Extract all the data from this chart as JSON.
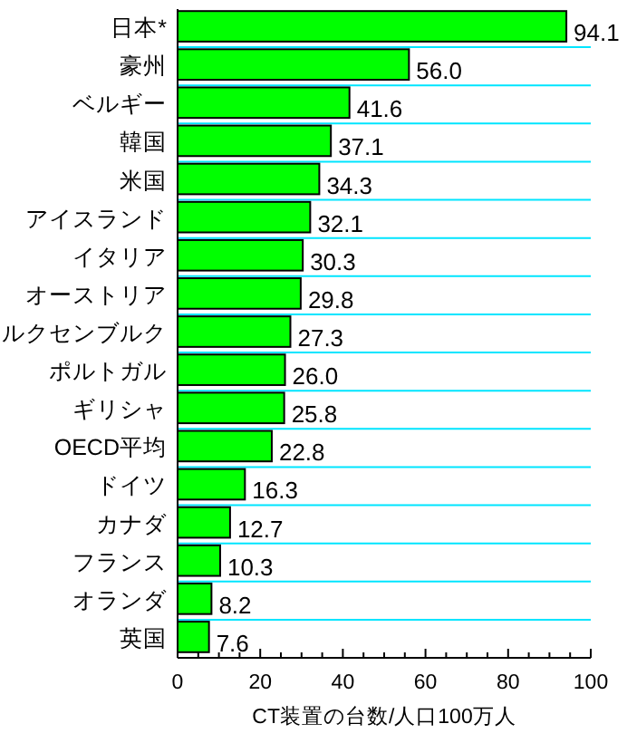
{
  "chart_data": {
    "type": "bar",
    "orientation": "horizontal",
    "xlabel": "CT装置の台数/人口100万人",
    "categories": [
      "日本*",
      "豪州",
      "ベルギー",
      "韓国",
      "米国",
      "アイスランド",
      "イタリア",
      "オーストリア",
      "ルクセンブルク",
      "ポルトガル",
      "ギリシャ",
      "OECD平均",
      "ドイツ",
      "カナダ",
      "フランス",
      "オランダ",
      "英国"
    ],
    "values": [
      94.1,
      56.0,
      41.6,
      37.1,
      34.3,
      32.1,
      30.3,
      29.8,
      27.3,
      26.0,
      25.8,
      22.8,
      16.3,
      12.7,
      10.3,
      8.2,
      7.6
    ],
    "value_labels": [
      "94.1",
      "56.0",
      "41.6",
      "37.1",
      "34.3",
      "32.1",
      "30.3",
      "29.8",
      "27.3",
      "26.0",
      "25.8",
      "22.8",
      "16.3",
      "12.7",
      "10.3",
      "8.2",
      "7.6"
    ],
    "color": "#00ff00",
    "xlim": [
      0,
      100
    ],
    "xticks": [
      0,
      {
        "value": 5,
        "label": null
      },
      {
        "value": 10,
        "label": null
      },
      {
        "value": 15,
        "label": null
      },
      20,
      {
        "value": 25,
        "label": null
      },
      {
        "value": 30,
        "label": null
      },
      {
        "value": 35,
        "label": null
      },
      40,
      {
        "value": 45,
        "label": null
      },
      {
        "value": 50,
        "label": null
      },
      {
        "value": 55,
        "label": null
      },
      60,
      {
        "value": 65,
        "label": null
      },
      {
        "value": 70,
        "label": null
      },
      {
        "value": 75,
        "label": null
      },
      80,
      {
        "value": 85,
        "label": null
      },
      {
        "value": 90,
        "label": null
      },
      {
        "value": 95,
        "label": null
      },
      100
    ],
    "grid": "y"
  }
}
